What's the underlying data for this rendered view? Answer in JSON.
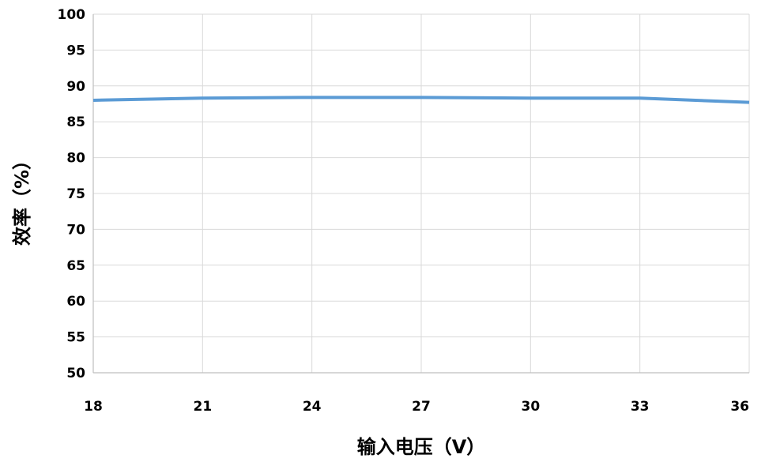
{
  "chart_data": {
    "type": "line",
    "title": "",
    "xlabel": "输入电压（V）",
    "ylabel": "效率（%）",
    "x": [
      18,
      21,
      24,
      27,
      30,
      33,
      36
    ],
    "xticks": [
      "18",
      "21",
      "24",
      "27",
      "30",
      "33",
      "36"
    ],
    "yticks": [
      "50",
      "55",
      "60",
      "65",
      "70",
      "75",
      "80",
      "85",
      "90",
      "95",
      "100"
    ],
    "xlim": [
      18,
      36
    ],
    "ylim": [
      50,
      100
    ],
    "grid": true,
    "legend": "none",
    "series": [
      {
        "values": [
          88.0,
          88.3,
          88.4,
          88.4,
          88.3,
          88.3,
          87.7
        ],
        "color": "#5b9bd5"
      }
    ]
  },
  "colors": {
    "grid": "#d9d9d9",
    "axis": "#bfbfbf",
    "text": "#000000"
  }
}
